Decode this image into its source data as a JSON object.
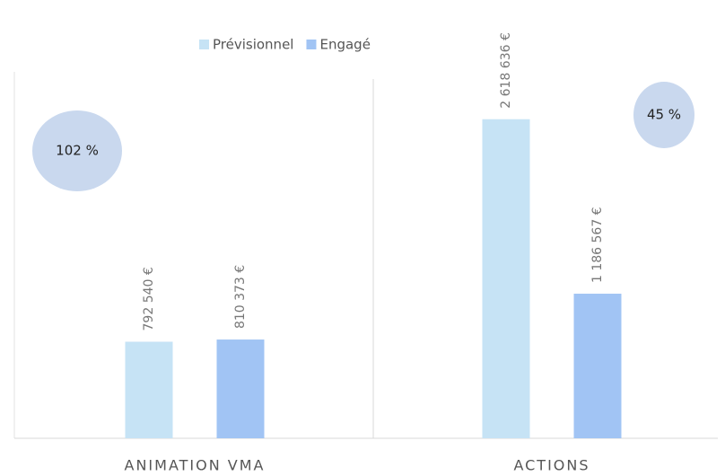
{
  "chart_data": {
    "type": "bar",
    "categories": [
      "ANIMATION VMA",
      "ACTIONS"
    ],
    "series": [
      {
        "name": "Prévisionnel",
        "color": "#c6e3f5",
        "values": [
          792540,
          2618636
        ],
        "value_labels": [
          "792 540 €",
          "2 618 636 €"
        ]
      },
      {
        "name": "Engagé",
        "color": "#a1c4f4",
        "values": [
          810373,
          1186567
        ],
        "value_labels": [
          "810 373 €",
          "1 186 567 €"
        ]
      }
    ],
    "annotations": [
      "102 %",
      "45 %"
    ],
    "ylim": [
      0,
      3000000
    ],
    "legend": "top"
  }
}
